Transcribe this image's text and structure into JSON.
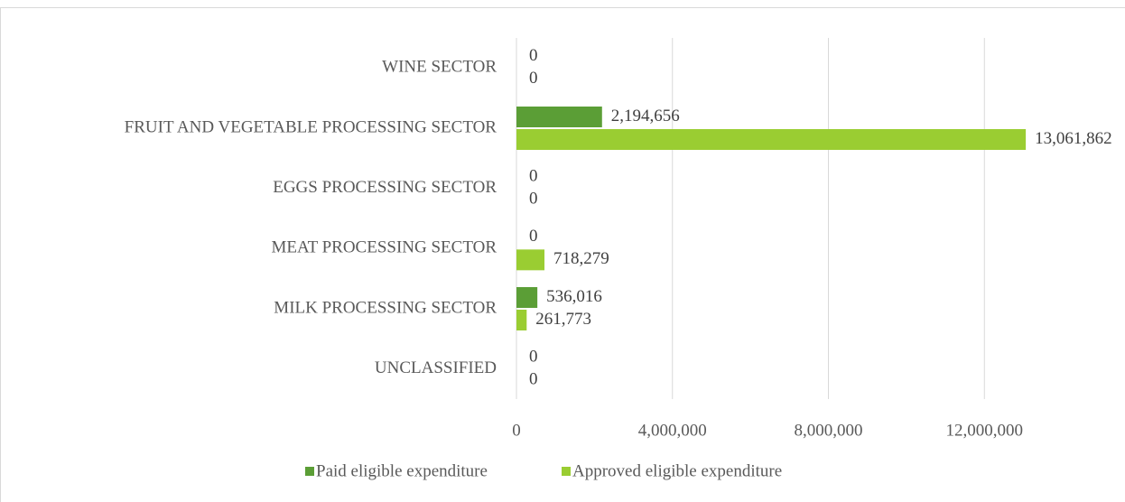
{
  "chart_data": {
    "type": "hbar",
    "categories": [
      "WINE SECTOR",
      "FRUIT AND VEGETABLE PROCESSING SECTOR",
      "EGGS PROCESSING SECTOR",
      "MEAT PROCESSING SECTOR",
      "MILK PROCESSING SECTOR",
      "UNCLASSIFIED"
    ],
    "series": [
      {
        "name": "Paid eligible expenditure",
        "color": "#5b9e36",
        "values": [
          0,
          2194656,
          0,
          0,
          536016,
          0
        ],
        "value_labels": [
          "0",
          "2,194,656",
          "0",
          "0",
          "536,016",
          "0"
        ]
      },
      {
        "name": "Approved eligible expenditure",
        "color": "#9acd32",
        "values": [
          0,
          13061862,
          0,
          718279,
          261773,
          0
        ],
        "value_labels": [
          "0",
          "13,061,862",
          "0",
          "718,279",
          "261,773",
          "0"
        ]
      }
    ],
    "xlim": [
      0,
      16000000
    ],
    "xticks": [
      0,
      {
        "value": 4000000,
        "label": "4,000,000"
      },
      {
        "value": 8000000,
        "label": "8,000,000"
      },
      {
        "value": 12000000,
        "label": "12,000,000"
      }
    ],
    "grid": true,
    "legend": "bottom"
  }
}
